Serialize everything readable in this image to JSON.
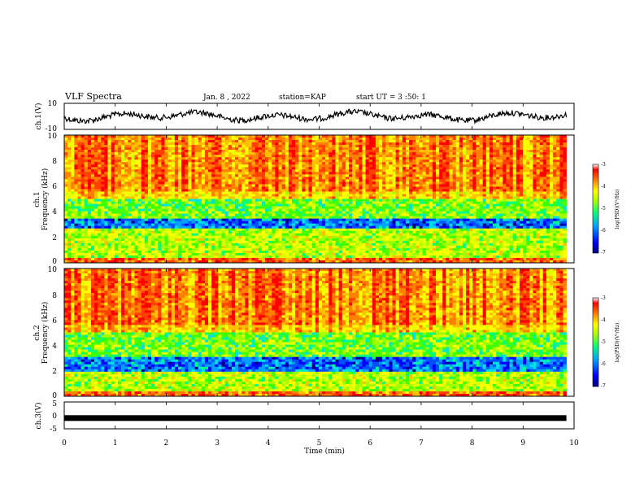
{
  "header": {
    "title": "VLF Spectra",
    "date": "Jan. 8 , 2022",
    "station": "station=KAP",
    "start": "start UT =  3 :50: 1"
  },
  "chart_data": [
    {
      "type": "line",
      "ylabel": "ch.1(V)",
      "ylim": [
        -10,
        10
      ],
      "yticklabels": [
        "10",
        "-10"
      ],
      "xlim": [
        0,
        10
      ],
      "description_free": true
    },
    {
      "type": "heatmap",
      "ylabel": "ch.1\nFrequency (kHz)",
      "ylabel_lines": [
        "ch.1",
        "Frequency (kHz)"
      ],
      "ylim": [
        0,
        10
      ],
      "yticklabels": [
        "0",
        "2",
        "4",
        "6",
        "8",
        "10"
      ],
      "colorbar": {
        "label": "log(PSD)(V²/Hz)",
        "ticks": [
          "-3",
          "-4",
          "-5",
          "-6",
          "-7"
        ],
        "range": [
          -7,
          -3
        ]
      },
      "xlim": [
        0,
        9.85
      ]
    },
    {
      "type": "heatmap",
      "ylabel_lines": [
        "ch.2",
        "Frequency (kHz)"
      ],
      "ylim": [
        0,
        10
      ],
      "yticklabels": [
        "0",
        "2",
        "4",
        "6",
        "8",
        "10"
      ],
      "colorbar": {
        "label": "log(PSD)(V²/Hz)",
        "ticks": [
          "-3",
          "-4",
          "-5",
          "-6",
          "-7"
        ],
        "range": [
          -7,
          -3
        ]
      },
      "xlim": [
        0,
        9.85
      ]
    },
    {
      "type": "line",
      "ylabel": "ch.3(V)",
      "ylim": [
        -5,
        5
      ],
      "yticklabels": [
        "5",
        "0",
        "-5"
      ],
      "values_note_free": true,
      "level": -1,
      "xlim": [
        0,
        9.85
      ]
    }
  ],
  "xaxis": {
    "label": "Time (min)",
    "ticks": [
      "0",
      "1",
      "2",
      "3",
      "4",
      "5",
      "6",
      "7",
      "8",
      "9",
      "10"
    ],
    "range": [
      0,
      10
    ]
  },
  "colors": {
    "trace": "#000000",
    "spectrum_scale": [
      "#000080",
      "#0000ff",
      "#00a0ff",
      "#00ff80",
      "#a0ff00",
      "#ffff00",
      "#ff8000",
      "#ff0000",
      "#ffffff"
    ]
  }
}
